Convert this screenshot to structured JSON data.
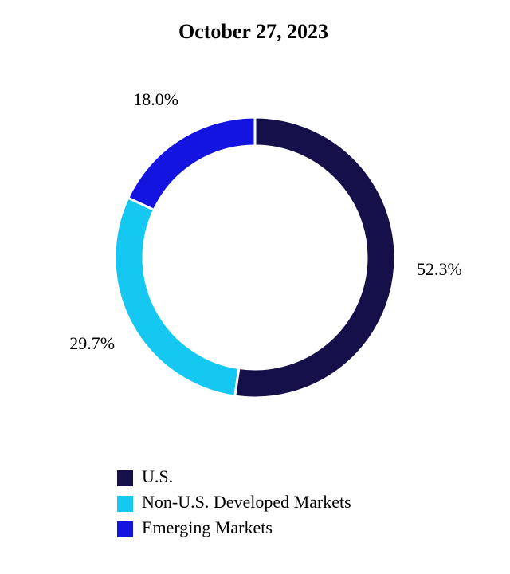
{
  "chart_data": {
    "type": "doughnut",
    "title": "October 27, 2023",
    "categories": [
      "U.S.",
      "Non-U.S. Developed Markets",
      "Emerging Markets"
    ],
    "values": [
      52.3,
      29.7,
      18.0
    ],
    "value_labels": [
      "52.3%",
      "29.7%",
      "18.0%"
    ],
    "colors": [
      "#16104a",
      "#14c8f2",
      "#1414e0"
    ]
  }
}
